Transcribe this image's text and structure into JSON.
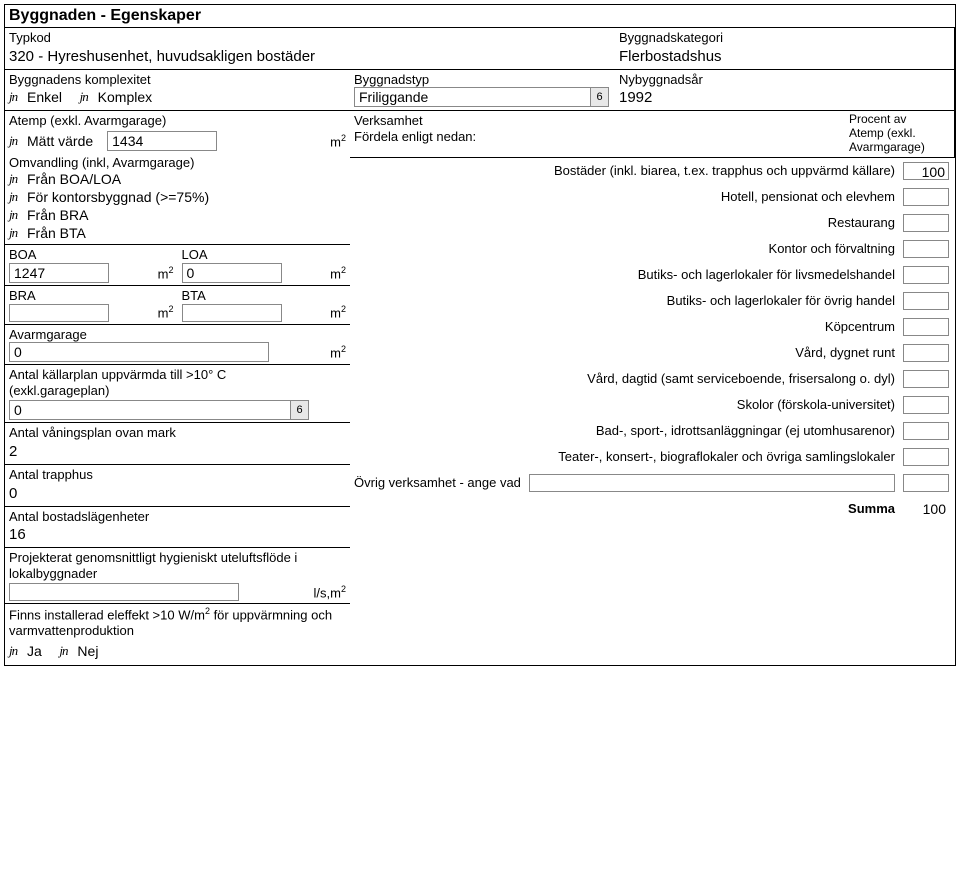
{
  "title": "Byggnaden - Egenskaper",
  "row1": {
    "typkod_label": "Typkod",
    "typkod_value": "320 - Hyreshusenhet, huvudsakligen bostäder",
    "kategori_label": "Byggnadskategori",
    "kategori_value": "Flerbostadshus"
  },
  "row2": {
    "komplex_label": "Byggnadens komplexitet",
    "enkel": "Enkel",
    "komplex": "Komplex",
    "byggnadstyp_label": "Byggnadstyp",
    "byggnadstyp_value": "Friliggande",
    "nybyggnadsar_label": "Nybyggnadsår",
    "nybyggnadsar_value": "1992"
  },
  "atemp": {
    "label": "Atemp (exkl. Avarmgarage)",
    "matt_varde": "Mätt värde",
    "matt_value": "1434",
    "omvandling_label": "Omvandling (inkl, Avarmgarage)",
    "fran_boaloa": "Från BOA/LOA",
    "for_kontor": "För kontorsbyggnad (>=75%)",
    "fran_bra": "Från BRA",
    "fran_bta": "Från BTA",
    "boa_label": "BOA",
    "boa_value": "1247",
    "loa_label": "LOA",
    "loa_value": "0",
    "bra_label": "BRA",
    "bra_value": "",
    "bta_label": "BTA",
    "bta_value": "",
    "avarmgarage_label": "Avarmgarage",
    "avarmgarage_value": "0",
    "kallarplan_label": "Antal källarplan uppvärmda till >10° C (exkl.garageplan)",
    "kallarplan_value": "0",
    "vaningsplan_label": "Antal våningsplan ovan mark",
    "vaningsplan_value": "2",
    "trapphus_label": "Antal trapphus",
    "trapphus_value": "0",
    "bostadslagenheter_label": "Antal bostadslägenheter",
    "bostadslagenheter_value": "16",
    "projekterat_label": "Projekterat genomsnittligt hygieniskt uteluftsflöde i lokalbyggnader",
    "projekterat_value": "",
    "projekterat_unit": "l/s,m",
    "finns_label_1": "Finns installerad eleffekt >10 W/m",
    "finns_label_2": " för uppvärmning och varmvattenproduktion",
    "ja": "Ja",
    "nej": "Nej",
    "m2": "m",
    "dropdown_arrow": "6"
  },
  "verksamhet": {
    "header1": "Verksamhet",
    "header2": "Fördela enligt nedan:",
    "procent_label1": "Procent av",
    "procent_label2": "Atemp (exkl.",
    "procent_label3": "Avarmgarage)",
    "items": [
      {
        "label": "Bostäder (inkl. biarea, t.ex. trapphus och uppvärmd källare)",
        "value": "100"
      },
      {
        "label": "Hotell, pensionat och elevhem",
        "value": ""
      },
      {
        "label": "Restaurang",
        "value": ""
      },
      {
        "label": "Kontor och förvaltning",
        "value": ""
      },
      {
        "label": "Butiks- och lagerlokaler för livsmedelshandel",
        "value": ""
      },
      {
        "label": "Butiks- och lagerlokaler för övrig handel",
        "value": ""
      },
      {
        "label": "Köpcentrum",
        "value": ""
      },
      {
        "label": "Vård, dygnet runt",
        "value": ""
      },
      {
        "label": "Vård, dagtid (samt serviceboende, frisersalong o. dyl)",
        "value": ""
      },
      {
        "label": "Skolor (förskola-universitet)",
        "value": ""
      },
      {
        "label": "Bad-, sport-, idrottsanläggningar (ej utomhusarenor)",
        "value": ""
      },
      {
        "label": "Teater-, konsert-, biograflokaler och övriga samlingslokaler",
        "value": ""
      }
    ],
    "ovrig_label": "Övrig verksamhet - ange vad",
    "ovrig_text": "",
    "ovrig_value": "",
    "summa_label": "Summa",
    "summa_value": "100"
  }
}
